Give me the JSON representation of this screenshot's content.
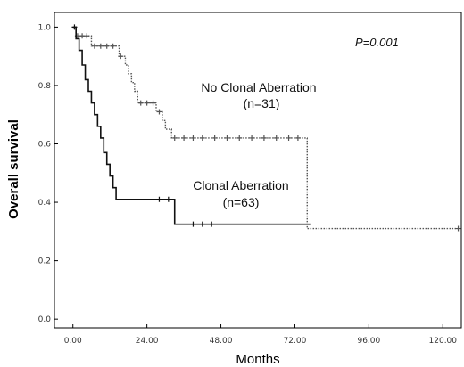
{
  "chart_data": {
    "type": "line",
    "title": "",
    "xlabel": "Months",
    "ylabel": "Overall survival",
    "xlim": [
      -6,
      126
    ],
    "ylim": [
      -0.03,
      1.05
    ],
    "xticks": [
      0,
      24,
      48,
      72,
      96,
      120
    ],
    "xtick_labels": [
      "0.00",
      "24.00",
      "48.00",
      "72.00",
      "96.00",
      "120.00"
    ],
    "yticks": [
      0.0,
      0.2,
      0.4,
      0.6,
      0.8,
      1.0
    ],
    "ytick_labels": [
      "0.0",
      "0.2",
      "0.4",
      "0.6",
      "0.8",
      "1.0"
    ],
    "grid": false,
    "legend": "none",
    "annotations": [
      {
        "id": "pvalue",
        "text": "P=0.001"
      }
    ],
    "series": [
      {
        "label_lines": [
          "No Clonal Aberration",
          "(n=31)"
        ],
        "style": "dotted",
        "color": "#555555",
        "steps": [
          [
            0,
            1.0
          ],
          [
            1,
            0.97
          ],
          [
            6,
            0.935
          ],
          [
            15,
            0.9
          ],
          [
            17,
            0.87
          ],
          [
            18,
            0.84
          ],
          [
            19,
            0.81
          ],
          [
            20,
            0.78
          ],
          [
            21,
            0.74
          ],
          [
            27,
            0.71
          ],
          [
            29,
            0.68
          ],
          [
            30,
            0.65
          ],
          [
            32,
            0.62
          ],
          [
            76,
            0.31
          ],
          [
            125,
            0.31
          ]
        ],
        "censors": [
          [
            1.5,
            0.97
          ],
          [
            3,
            0.97
          ],
          [
            4.5,
            0.97
          ],
          [
            7,
            0.935
          ],
          [
            9,
            0.935
          ],
          [
            11,
            0.935
          ],
          [
            13,
            0.935
          ],
          [
            15.5,
            0.9
          ],
          [
            22,
            0.74
          ],
          [
            24,
            0.74
          ],
          [
            26,
            0.74
          ],
          [
            28,
            0.71
          ],
          [
            33,
            0.62
          ],
          [
            36,
            0.62
          ],
          [
            39,
            0.62
          ],
          [
            42,
            0.62
          ],
          [
            46,
            0.62
          ],
          [
            50,
            0.62
          ],
          [
            54,
            0.62
          ],
          [
            58,
            0.62
          ],
          [
            62,
            0.62
          ],
          [
            66,
            0.62
          ],
          [
            70,
            0.62
          ],
          [
            73,
            0.62
          ],
          [
            125,
            0.31
          ]
        ]
      },
      {
        "label_lines": [
          "Clonal Aberration",
          "(n=63)"
        ],
        "style": "solid",
        "color": "#111111",
        "steps": [
          [
            0,
            1.0
          ],
          [
            1,
            0.96
          ],
          [
            2,
            0.92
          ],
          [
            3,
            0.87
          ],
          [
            4,
            0.82
          ],
          [
            5,
            0.78
          ],
          [
            6,
            0.74
          ],
          [
            7,
            0.7
          ],
          [
            8,
            0.66
          ],
          [
            9,
            0.62
          ],
          [
            10,
            0.57
          ],
          [
            11,
            0.53
          ],
          [
            12,
            0.49
          ],
          [
            13,
            0.45
          ],
          [
            14,
            0.41
          ],
          [
            33,
            0.325
          ],
          [
            77,
            0.325
          ]
        ],
        "censors": [
          [
            0.5,
            1.0
          ],
          [
            28,
            0.41
          ],
          [
            31,
            0.41
          ],
          [
            39,
            0.325
          ],
          [
            42,
            0.325
          ],
          [
            45,
            0.325
          ]
        ]
      }
    ]
  }
}
